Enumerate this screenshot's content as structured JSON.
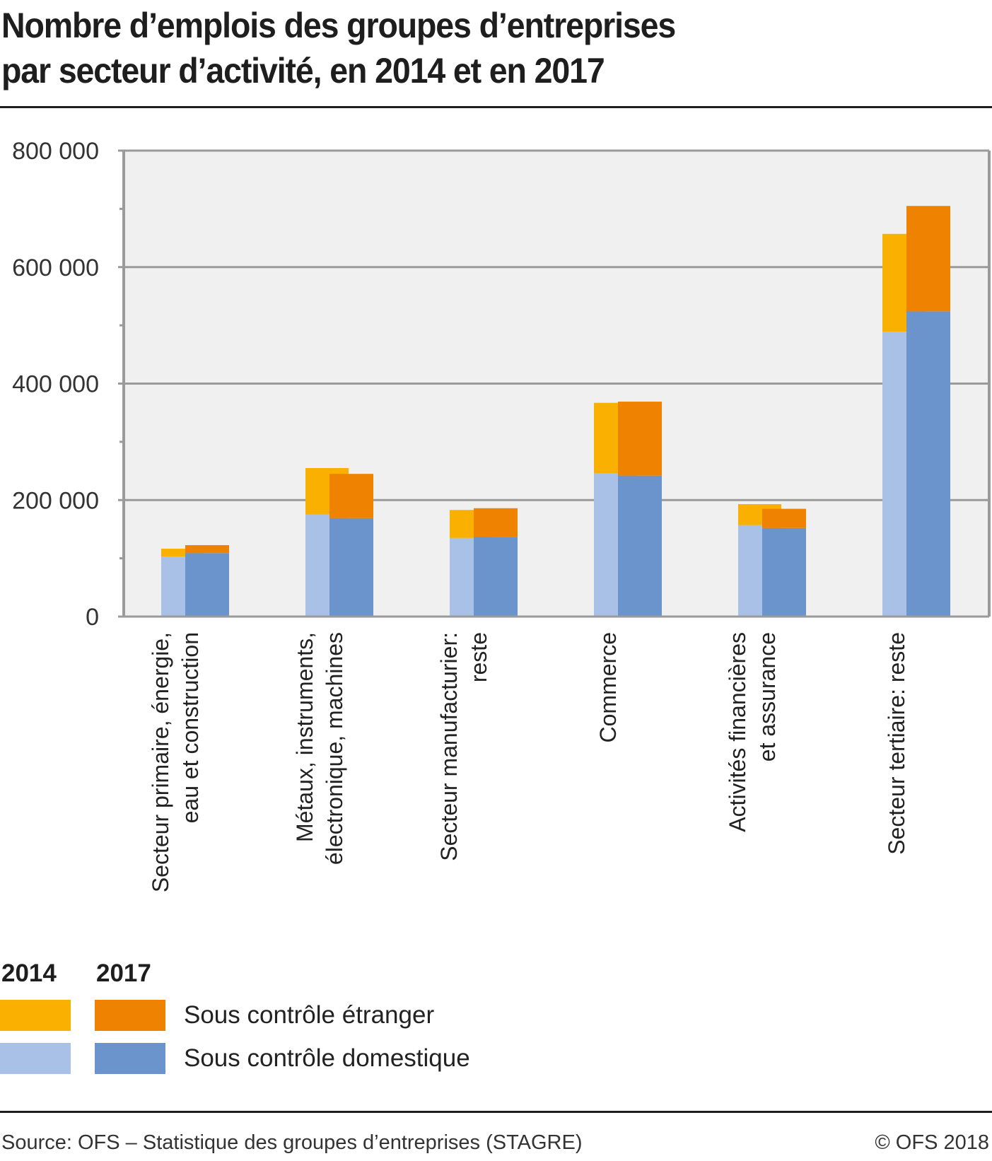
{
  "title_line1": "Nombre d’emplois des groupes d’entreprises",
  "title_line2": "par secteur d’activité, en 2014 et en 2017",
  "legend": {
    "year_2014": "2014",
    "year_2017": "2017",
    "foreign_label": "Sous contrôle étranger",
    "domestic_label": "Sous contrôle domestique"
  },
  "colors": {
    "foreign_2014": "#f9b000",
    "foreign_2017": "#ef8200",
    "domestic_2014": "#a9c1e6",
    "domestic_2017": "#6a94cb",
    "plot_bg": "#f0f0f0",
    "grid": "#9a9a9a"
  },
  "footer": {
    "source": "Source: OFS – Statistique des groupes d’entreprises (STAGRE)",
    "copyright": "© OFS 2018"
  },
  "chart_data": {
    "type": "bar",
    "stacked": true,
    "grouped_by": [
      "2014",
      "2017"
    ],
    "title": "Nombre d’emplois des groupes d’entreprises par secteur d’activité, en 2014 et en 2017",
    "xlabel": "",
    "ylabel": "",
    "ylim": [
      0,
      800000
    ],
    "yticks": [
      0,
      200000,
      400000,
      600000,
      800000
    ],
    "ytick_labels": [
      "0",
      "200 000",
      "400 000",
      "600 000",
      "800 000"
    ],
    "grid": true,
    "legend_position": "bottom-left",
    "categories": [
      [
        "Secteur primaire, énergie,",
        "eau et construction"
      ],
      [
        "Métaux, instruments,",
        "électronique, machines"
      ],
      [
        "Secteur manufacturier:",
        "reste"
      ],
      [
        "Commerce"
      ],
      [
        "Activités financières",
        "et assurance"
      ],
      [
        "Secteur tertiaire: reste"
      ]
    ],
    "series": [
      {
        "name": "Sous contrôle domestique",
        "year": "2014",
        "values": [
          103000,
          175000,
          135000,
          246000,
          157000,
          489000
        ]
      },
      {
        "name": "Sous contrôle étranger",
        "year": "2014",
        "values": [
          13500,
          80000,
          48000,
          121000,
          36000,
          168000
        ]
      },
      {
        "name": "Sous contrôle domestique",
        "year": "2017",
        "values": [
          109000,
          169000,
          137000,
          242000,
          152000,
          524000
        ]
      },
      {
        "name": "Sous contrôle étranger",
        "year": "2017",
        "values": [
          13600,
          76000,
          49000,
          127000,
          33000,
          181000
        ]
      }
    ]
  }
}
